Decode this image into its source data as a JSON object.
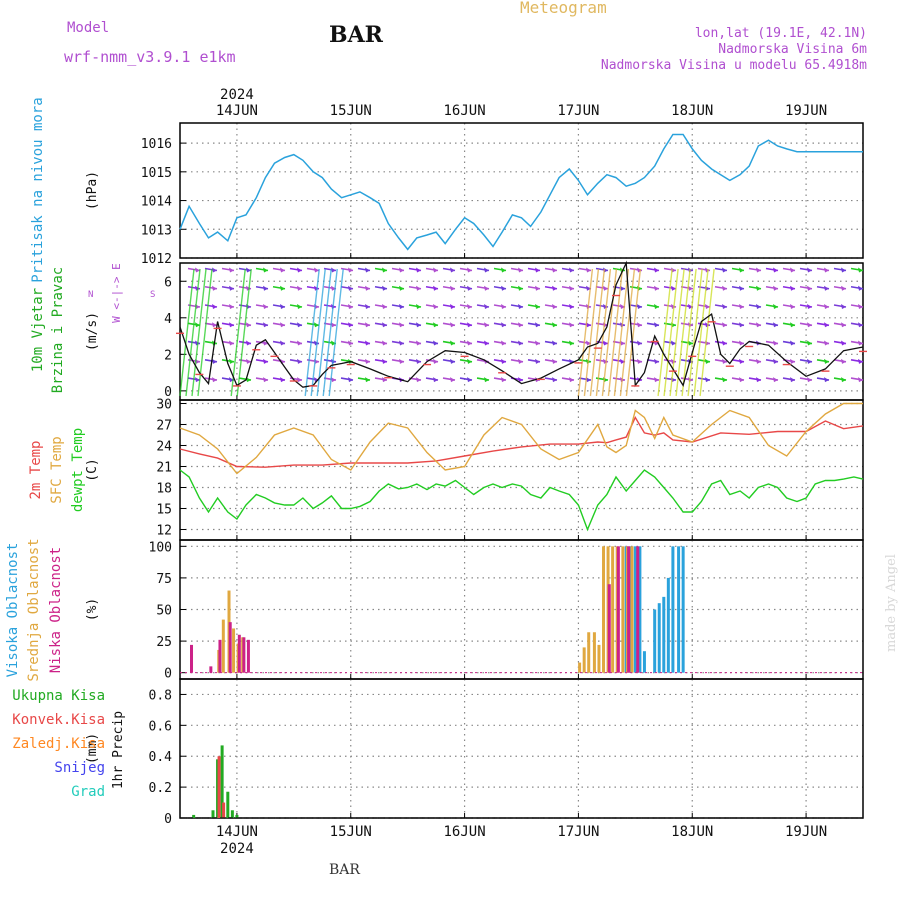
{
  "header": {
    "model_label": "Model",
    "model_name": "wrf-nmm_v3.9.1 e1km",
    "station": "BAR",
    "title": "Meteogram",
    "coords": "lon,lat (19.1E, 42.1N)",
    "elevation": "Nadmorska Visina 6m",
    "model_elevation": "Nadmorska Visina u modelu 65.4918m",
    "watermark": "made by Angel",
    "footer_station": "BAR"
  },
  "colors": {
    "pressure": "#2aa2dc",
    "t2m": "#e84848",
    "sfc": "#e0a840",
    "dewpt": "#22cc22",
    "high_cloud": "#2aa2dc",
    "mid_cloud": "#e0a840",
    "low_cloud": "#cc2288",
    "total_precip": "#22aa22",
    "conv_precip": "#e84848",
    "frozen": "#ff8822",
    "snow": "#4444ee",
    "hail": "#22ccbb",
    "label_purple": "#b04fd0"
  },
  "chart_data": [
    {
      "type": "line",
      "name": "pressure",
      "ylabel": "Pritisak na nivou mora",
      "unit": "(hPa)",
      "ylim": [
        1012,
        1016.7
      ],
      "yticks": [
        1012,
        1013,
        1014,
        1015,
        1016
      ],
      "x_day_labels": [
        "14JUN",
        "15JUN",
        "16JUN",
        "17JUN",
        "18JUN",
        "19JUN"
      ],
      "year_label": "2024",
      "grid": true,
      "series": [
        {
          "name": "Pritisak na nivou mora",
          "x": [
            -0.5,
            -0.42,
            -0.33,
            -0.25,
            -0.17,
            -0.08,
            0,
            0.08,
            0.17,
            0.25,
            0.33,
            0.42,
            0.5,
            0.58,
            0.67,
            0.75,
            0.83,
            0.92,
            1,
            1.08,
            1.17,
            1.25,
            1.33,
            1.42,
            1.5,
            1.58,
            1.67,
            1.75,
            1.83,
            1.92,
            2,
            2.08,
            2.17,
            2.25,
            2.33,
            2.42,
            2.5,
            2.58,
            2.67,
            2.75,
            2.83,
            2.92,
            3,
            3.08,
            3.17,
            3.25,
            3.33,
            3.42,
            3.5,
            3.58,
            3.67,
            3.75,
            3.83,
            3.92,
            4,
            4.08,
            4.17,
            4.25,
            4.33,
            4.42,
            4.5,
            4.58,
            4.67,
            4.75,
            4.83,
            4.92,
            5,
            5.08,
            5.17,
            5.25,
            5.33,
            5.42,
            5.5
          ],
          "values": [
            1013,
            1013.8,
            1013.2,
            1012.7,
            1012.9,
            1012.6,
            1013.4,
            1013.5,
            1014.1,
            1014.8,
            1015.3,
            1015.5,
            1015.6,
            1015.4,
            1015,
            1014.8,
            1014.4,
            1014.1,
            1014.2,
            1014.3,
            1014.1,
            1013.9,
            1013.2,
            1012.7,
            1012.3,
            1012.7,
            1012.8,
            1012.9,
            1012.5,
            1013,
            1013.4,
            1013.2,
            1012.8,
            1012.4,
            1012.9,
            1013.5,
            1013.4,
            1013.1,
            1013.6,
            1014.2,
            1014.8,
            1015.1,
            1014.7,
            1014.2,
            1014.6,
            1014.9,
            1014.8,
            1014.5,
            1014.6,
            1014.8,
            1015.2,
            1015.8,
            1016.3,
            1016.3,
            1015.8,
            1015.4,
            1015.1,
            1014.9,
            1014.7,
            1014.9,
            1015.2,
            1015.9,
            1016.1,
            1015.9,
            1015.8,
            1015.7,
            1015.7,
            1015.7,
            1015.7,
            1015.7,
            1015.7,
            1015.7,
            1015.7
          ]
        }
      ]
    },
    {
      "type": "line",
      "name": "wind",
      "ylabel": "10m Vjetar",
      "ylabel2": "Brzina i Pravac",
      "unit": "(m/s)",
      "compass": "W <-|-> E",
      "compass_n": "N",
      "compass_s": "S",
      "ylim": [
        -0.5,
        7
      ],
      "yticks": [
        0,
        2,
        4,
        6
      ],
      "grid": true,
      "series": [
        {
          "name": "speed",
          "x": [
            -0.5,
            -0.42,
            -0.33,
            -0.25,
            -0.17,
            -0.08,
            0,
            0.08,
            0.17,
            0.25,
            0.33,
            0.42,
            0.5,
            0.58,
            0.67,
            0.75,
            0.83,
            0.92,
            1,
            1.17,
            1.33,
            1.5,
            1.67,
            1.83,
            2,
            2.17,
            2.33,
            2.5,
            2.67,
            2.83,
            3,
            3.08,
            3.17,
            3.25,
            3.33,
            3.42,
            3.5,
            3.58,
            3.67,
            3.75,
            3.83,
            3.92,
            4,
            4.08,
            4.17,
            4.25,
            4.33,
            4.42,
            4.5,
            4.67,
            4.83,
            5,
            5.17,
            5.33,
            5.5
          ],
          "values": [
            3.5,
            2,
            1,
            0.4,
            3.8,
            1.5,
            0.3,
            0.6,
            2.5,
            2.8,
            2.1,
            1.3,
            0.6,
            0.2,
            0.3,
            0.9,
            1.4,
            1.5,
            1.6,
            1.2,
            0.8,
            0.5,
            1.6,
            2.2,
            2.1,
            1.7,
            1.1,
            0.4,
            0.7,
            1.2,
            1.7,
            2.4,
            2.6,
            3.5,
            5.8,
            7,
            0.3,
            1,
            3,
            2,
            1.2,
            0.3,
            2.1,
            3.8,
            4.2,
            2,
            1.5,
            2.3,
            2.7,
            2.5,
            1.6,
            0.8,
            1.2,
            2.2,
            2.4
          ]
        }
      ]
    },
    {
      "type": "line",
      "name": "temperature",
      "ylabel": "2m Temp",
      "ylabel2": "SFC Temp",
      "ylabel3": "dewpt Temp",
      "unit": "(C)",
      "ylim": [
        10.5,
        30.5
      ],
      "yticks": [
        12,
        15,
        18,
        21,
        24,
        27,
        30
      ],
      "grid": true,
      "series": [
        {
          "name": "2m Temp",
          "x": [
            -0.5,
            -0.33,
            -0.17,
            0,
            0.25,
            0.5,
            0.75,
            1,
            1.25,
            1.5,
            1.75,
            2,
            2.25,
            2.5,
            2.75,
            3,
            3.17,
            3.25,
            3.33,
            3.42,
            3.5,
            3.58,
            3.67,
            3.75,
            3.83,
            4,
            4.25,
            4.5,
            4.75,
            5,
            5.17,
            5.33,
            5.5
          ],
          "values": [
            23.5,
            22.8,
            22.2,
            21,
            20.9,
            21.2,
            21.2,
            21.5,
            21.5,
            21.5,
            21.8,
            22.5,
            23.2,
            23.8,
            24.2,
            24.2,
            24.5,
            24.4,
            24.8,
            25.2,
            28,
            25.8,
            25.5,
            25.8,
            24.8,
            24.5,
            25.8,
            25.6,
            26,
            26,
            27.5,
            26.4,
            26.8
          ]
        },
        {
          "name": "SFC Temp",
          "x": [
            -0.5,
            -0.33,
            -0.17,
            0,
            0.17,
            0.33,
            0.5,
            0.67,
            0.83,
            1,
            1.17,
            1.33,
            1.5,
            1.67,
            1.83,
            2,
            2.17,
            2.33,
            2.5,
            2.67,
            2.83,
            3,
            3.17,
            3.25,
            3.33,
            3.42,
            3.5,
            3.58,
            3.67,
            3.75,
            3.83,
            4,
            4.17,
            4.33,
            4.5,
            4.67,
            4.83,
            5,
            5.17,
            5.33,
            5.5
          ],
          "values": [
            26.5,
            25.5,
            23.5,
            20,
            22.3,
            25.5,
            26.5,
            25.5,
            22,
            20.5,
            24.5,
            27.2,
            26.5,
            23,
            20.5,
            21,
            25.5,
            28,
            27,
            23.5,
            22,
            23,
            27,
            23.8,
            23,
            24,
            29,
            28,
            25,
            28,
            25.5,
            24.5,
            27,
            29,
            28,
            24,
            22.5,
            26,
            28.5,
            30,
            30
          ]
        },
        {
          "name": "dewpt Temp",
          "x": [
            -0.5,
            -0.42,
            -0.33,
            -0.25,
            -0.17,
            -0.08,
            0,
            0.08,
            0.17,
            0.25,
            0.33,
            0.42,
            0.5,
            0.58,
            0.67,
            0.75,
            0.83,
            0.92,
            1,
            1.08,
            1.17,
            1.25,
            1.33,
            1.42,
            1.5,
            1.58,
            1.67,
            1.75,
            1.83,
            1.92,
            2,
            2.08,
            2.17,
            2.25,
            2.33,
            2.42,
            2.5,
            2.58,
            2.67,
            2.75,
            2.83,
            2.92,
            3,
            3.08,
            3.17,
            3.25,
            3.33,
            3.42,
            3.5,
            3.58,
            3.67,
            3.75,
            3.83,
            3.92,
            4,
            4.08,
            4.17,
            4.25,
            4.33,
            4.42,
            4.5,
            4.58,
            4.67,
            4.75,
            4.83,
            4.92,
            5,
            5.08,
            5.17,
            5.25,
            5.33,
            5.42,
            5.5
          ],
          "values": [
            20.5,
            19.5,
            16.5,
            14.5,
            16.5,
            14.5,
            13.5,
            15.5,
            17,
            16.5,
            15.8,
            15.5,
            15.5,
            16.5,
            15,
            15.8,
            16.8,
            15,
            15,
            15.3,
            16,
            17.5,
            18.5,
            17.8,
            18,
            18.5,
            17.7,
            18.5,
            18.2,
            19,
            18,
            17,
            18,
            18.5,
            18,
            18.5,
            18.2,
            17,
            16.5,
            18,
            17.5,
            17,
            15.5,
            12,
            15.5,
            17,
            19.5,
            17.5,
            19,
            20.5,
            19.5,
            18,
            16.5,
            14.5,
            14.5,
            16,
            18.5,
            19,
            17,
            17.5,
            16.5,
            18,
            18.5,
            18,
            16.5,
            16,
            16.5,
            18.5,
            19,
            19,
            19.2,
            19.5,
            19.2
          ]
        }
      ]
    },
    {
      "type": "bar",
      "name": "clouds",
      "ylabel": "Visoka Oblacnost",
      "ylabel2": "Srednja Oblacnost",
      "ylabel3": "Niska Oblacnost",
      "unit": "(%)",
      "ylim": [
        -5,
        105
      ],
      "yticks": [
        0,
        25,
        50,
        75,
        100
      ],
      "grid": true,
      "series": [
        {
          "name": "Visoka Oblacnost",
          "x": [
            3.42,
            3.46,
            3.5,
            3.54,
            3.58,
            3.67,
            3.71,
            3.75,
            3.79,
            3.83,
            3.88,
            3.92
          ],
          "values": [
            100,
            100,
            100,
            100,
            17,
            50,
            55,
            60,
            75,
            100,
            100,
            100
          ]
        },
        {
          "name": "Srednja Oblacnost",
          "x": [
            -0.17,
            -0.13,
            -0.08,
            -0.04,
            0,
            0.04,
            3.0,
            3.04,
            3.08,
            3.13,
            3.17,
            3.21,
            3.25,
            3.29,
            3.33,
            3.38,
            3.42,
            3.46
          ],
          "values": [
            18,
            42,
            65,
            35,
            23,
            28,
            8,
            20,
            32,
            32,
            22,
            100,
            100,
            100,
            100,
            100,
            100,
            100
          ]
        },
        {
          "name": "Niska Oblacnost",
          "x": [
            -0.42,
            -0.25,
            -0.17,
            -0.08,
            0,
            0.04,
            0.08,
            3.25,
            3.33,
            3.42,
            3.5
          ],
          "values": [
            22,
            5,
            26,
            40,
            30,
            28,
            26,
            70,
            100,
            100,
            100
          ]
        }
      ]
    },
    {
      "type": "bar",
      "name": "precipitation",
      "ylabel": "1hr Precip",
      "unit": "(mm)",
      "legend": [
        "Ukupna Kisa",
        "Konvek.Kisa",
        "Zaledj.Kisa",
        "Snijeg",
        "Grad"
      ],
      "ylim": [
        0,
        0.9
      ],
      "yticks": [
        0,
        0.2,
        0.4,
        0.6,
        0.8
      ],
      "grid": true,
      "series": [
        {
          "name": "Ukupna Kisa",
          "x": [
            -0.38,
            -0.21,
            -0.17,
            -0.13,
            -0.08,
            -0.04,
            0
          ],
          "values": [
            0.02,
            0.05,
            0.38,
            0.47,
            0.17,
            0.05,
            0.02
          ]
        },
        {
          "name": "Konvek.Kisa",
          "x": [
            -0.17,
            -0.13
          ],
          "values": [
            0.4,
            0.1
          ]
        }
      ]
    }
  ]
}
